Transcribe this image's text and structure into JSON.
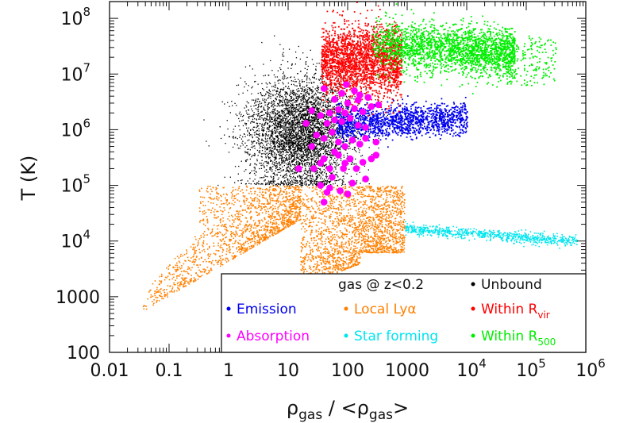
{
  "chart_data": {
    "type": "scatter",
    "xlabel": "ρgas / <ρgas>",
    "ylabel": "T (K)",
    "xscale": "log",
    "yscale": "log",
    "xlim": [
      0.01,
      1000000
    ],
    "ylim": [
      100,
      200000000
    ],
    "grid": false,
    "legend_placement": "bottom-right",
    "x_ticks": [
      {
        "value": 0.01,
        "label": "0.01"
      },
      {
        "value": 0.1,
        "label": "0.1"
      },
      {
        "value": 1,
        "label": "1"
      },
      {
        "value": 10,
        "label": "10"
      },
      {
        "value": 100,
        "label": "100"
      },
      {
        "value": 1000,
        "label": "1000"
      },
      {
        "value": 10000,
        "base": "10",
        "exp": "4"
      },
      {
        "value": 100000,
        "base": "10",
        "exp": "5"
      },
      {
        "value": 1000000,
        "base": "10",
        "exp": "6"
      }
    ],
    "y_ticks": [
      {
        "value": 100,
        "label": "100"
      },
      {
        "value": 1000,
        "label": "1000"
      },
      {
        "value": 10000,
        "base": "10",
        "exp": "4"
      },
      {
        "value": 100000,
        "base": "10",
        "exp": "5"
      },
      {
        "value": 1000000,
        "base": "10",
        "exp": "6"
      },
      {
        "value": 10000000,
        "base": "10",
        "exp": "7"
      },
      {
        "value": 100000000,
        "base": "10",
        "exp": "8"
      }
    ],
    "legend_title": "gas @ z<0.2",
    "series": [
      {
        "name": "Unbound",
        "color": "#000000"
      },
      {
        "name": "Emission",
        "color": "#0000ee"
      },
      {
        "name": "Local Lyα",
        "color": "#ff8000"
      },
      {
        "name": "Within Rvir",
        "color": "#ff0000"
      },
      {
        "name": "Absorption",
        "color": "#ff00ff"
      },
      {
        "name": "Star forming",
        "color": "#00e5ee"
      },
      {
        "name": "Within R500",
        "color": "#00ee00"
      }
    ],
    "absorption_points": [
      [
        27,
        200000
      ],
      [
        35,
        250000
      ],
      [
        40,
        300000
      ],
      [
        50,
        200000
      ],
      [
        60,
        400000
      ],
      [
        70,
        350000
      ],
      [
        85,
        200000
      ],
      [
        90,
        250000
      ],
      [
        110,
        300000
      ],
      [
        140,
        200000
      ],
      [
        180,
        260000
      ],
      [
        250,
        300000
      ],
      [
        300,
        350000
      ],
      [
        25,
        500000
      ],
      [
        30,
        800000
      ],
      [
        40,
        700000
      ],
      [
        55,
        900000
      ],
      [
        70,
        600000
      ],
      [
        90,
        500000
      ],
      [
        120,
        650000
      ],
      [
        160,
        550000
      ],
      [
        200,
        700000
      ],
      [
        300,
        600000
      ],
      [
        45,
        1300000
      ],
      [
        60,
        1500000
      ],
      [
        80,
        1400000
      ],
      [
        110,
        1600000
      ],
      [
        150,
        1200000
      ],
      [
        200,
        1100000
      ],
      [
        35,
        1800000
      ],
      [
        50,
        2000000
      ],
      [
        70,
        2300000
      ],
      [
        90,
        2000000
      ],
      [
        130,
        2400000
      ],
      [
        180,
        2100000
      ],
      [
        250,
        2600000
      ],
      [
        60,
        3500000
      ],
      [
        100,
        3000000
      ],
      [
        150,
        3400000
      ],
      [
        220,
        3800000
      ],
      [
        80,
        4500000
      ],
      [
        130,
        5000000
      ],
      [
        40,
        5500000
      ],
      [
        95,
        6500000
      ],
      [
        160,
        4200000
      ],
      [
        330,
        2800000
      ],
      [
        20,
        1300000
      ],
      [
        25,
        2200000
      ],
      [
        15,
        200000
      ],
      [
        35,
        100000
      ],
      [
        50,
        90000
      ],
      [
        45,
        75000
      ],
      [
        75,
        80000
      ],
      [
        100,
        70000
      ],
      [
        40,
        50000
      ],
      [
        55,
        140000
      ],
      [
        120,
        110000
      ],
      [
        200,
        130000
      ]
    ],
    "star_forming_points": [
      [
        1000,
        18000
      ],
      [
        2000,
        17000
      ],
      [
        3000,
        16000
      ],
      [
        5000,
        15000
      ],
      [
        10000,
        14000
      ],
      [
        20000,
        13500
      ],
      [
        50000,
        12000
      ],
      [
        100000,
        11500
      ],
      [
        200000,
        11000
      ],
      [
        500000,
        10000
      ],
      [
        700000,
        10000
      ]
    ]
  }
}
